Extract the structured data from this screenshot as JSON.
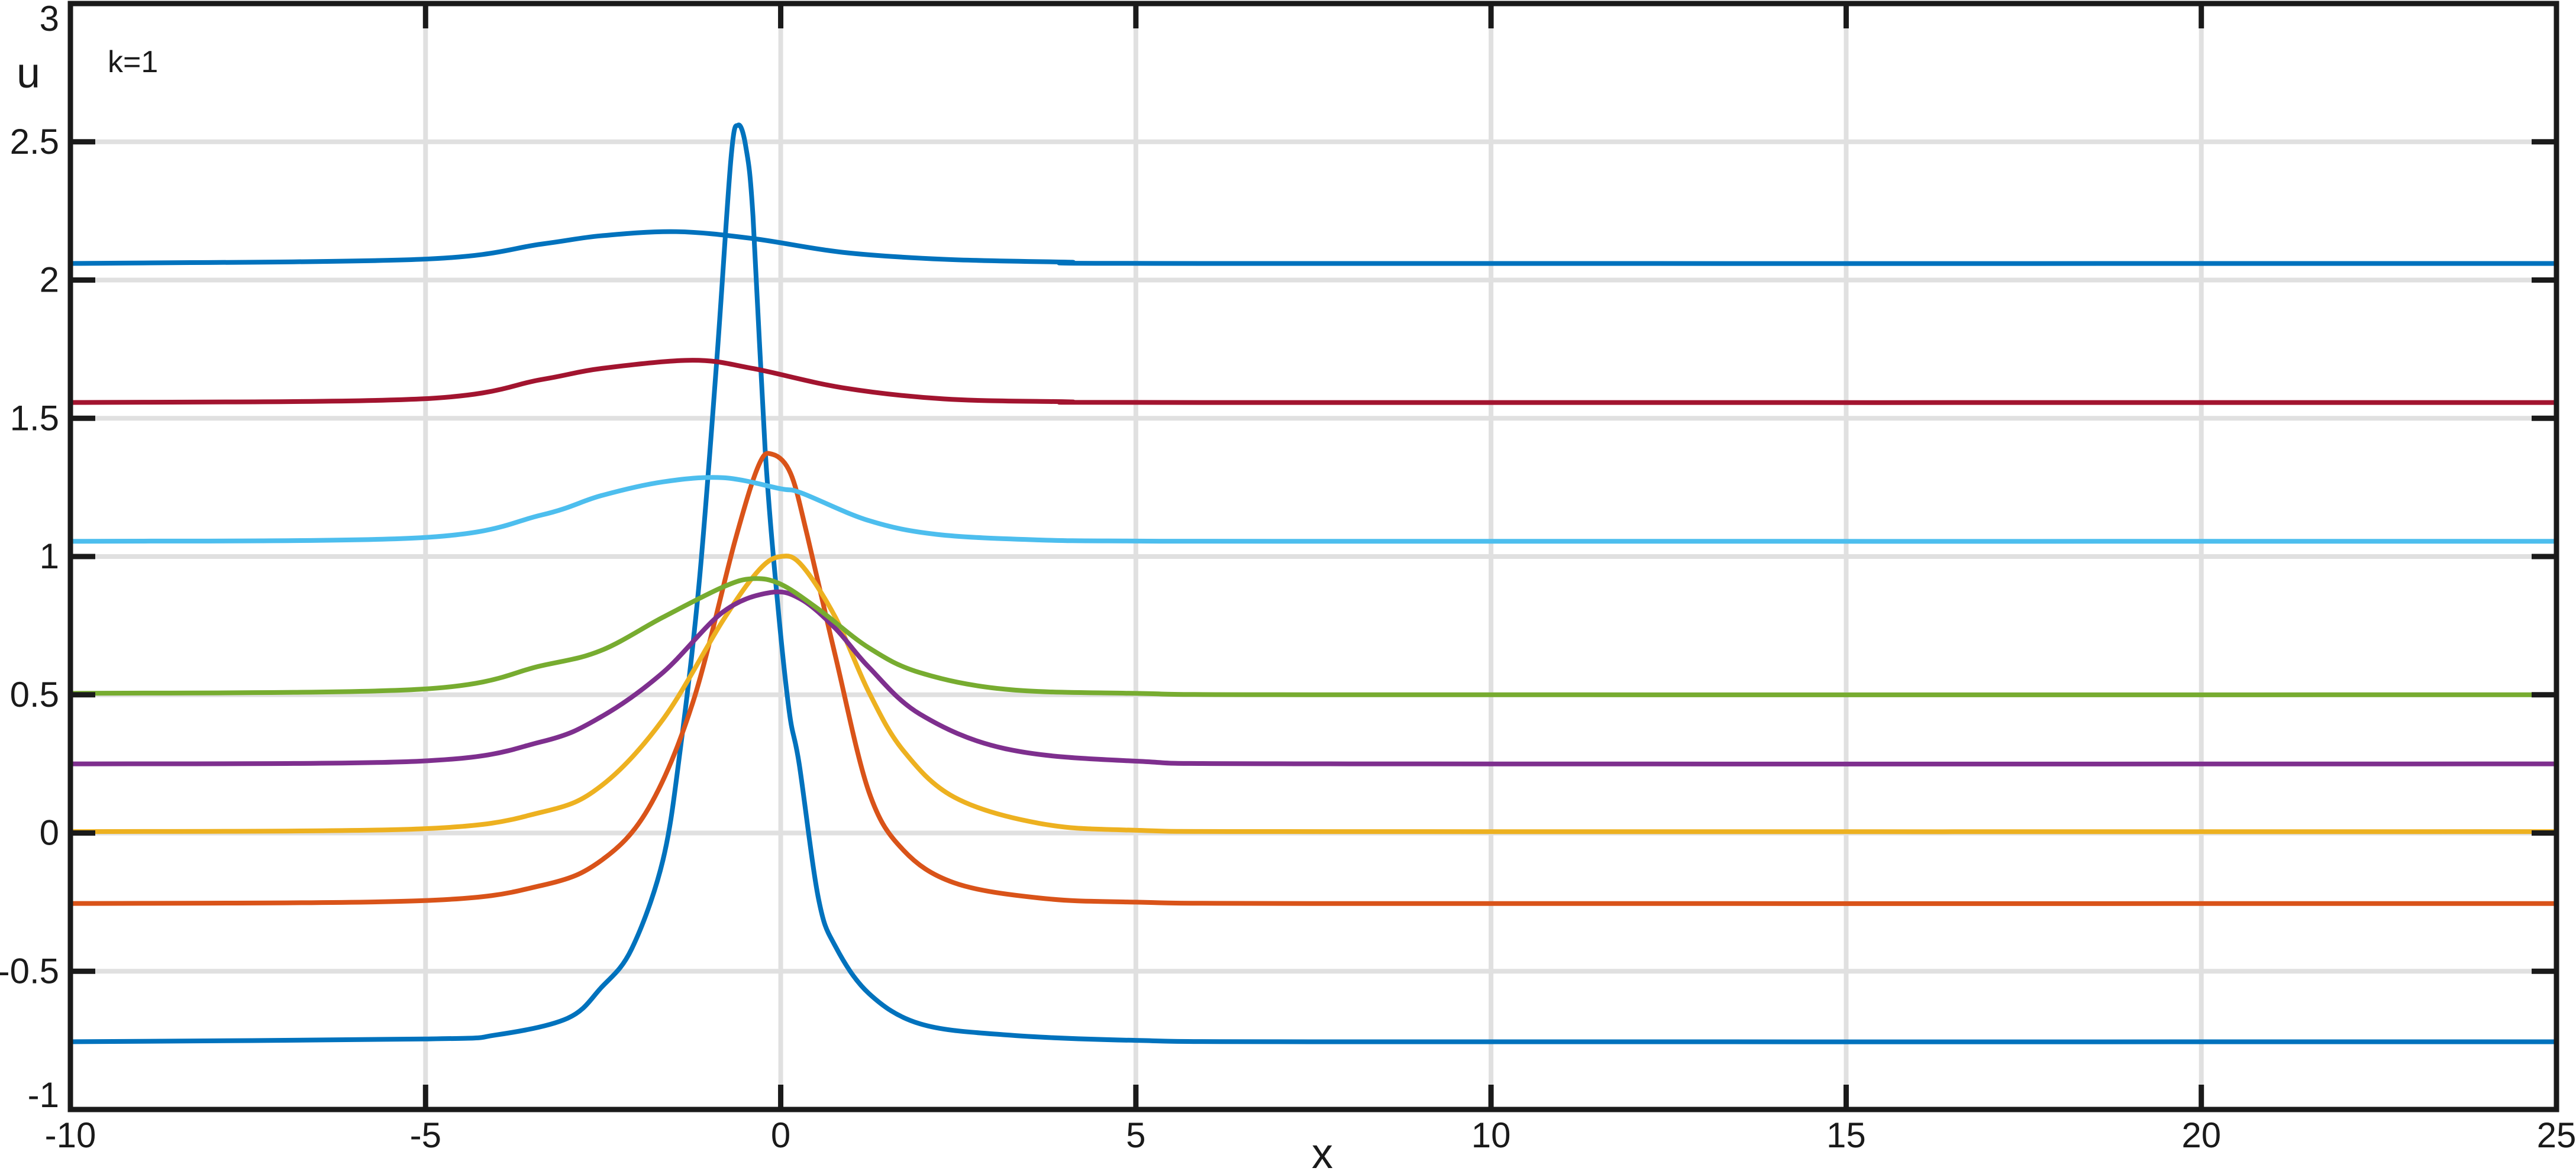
{
  "chart_data": {
    "type": "line",
    "title": "",
    "xlabel": "x",
    "ylabel": "u",
    "annotation": "k=1",
    "xlim": [
      -10,
      25
    ],
    "ylim": [
      -1,
      3
    ],
    "xticks": [
      -10,
      -5,
      0,
      5,
      10,
      15,
      20,
      25
    ],
    "xtick_labels": [
      "-10",
      "-5",
      "0",
      "5",
      "10",
      "15",
      "20",
      "25"
    ],
    "yticks": [
      -1,
      -0.5,
      0,
      0.5,
      1,
      1.5,
      2,
      2.5,
      3
    ],
    "ytick_labels": [
      "-1",
      "-0.5",
      "0",
      "0.5",
      "1",
      "1.5",
      "2",
      "2.5",
      "3"
    ],
    "grid": true,
    "grid_color": "#e0e0e0",
    "series": [
      {
        "color": "#0072BD",
        "x": [
          -10,
          -5,
          -4,
          -3,
          -2.53,
          -2.1,
          -1.66,
          -1.41,
          -1.15,
          -0.9,
          -0.7,
          -0.6,
          -0.49,
          -0.39,
          -0.22,
          -0.05,
          0.12,
          0.26,
          0.53,
          0.77,
          1.24,
          1.96,
          3.16,
          5,
          8,
          25
        ],
        "y": [
          -0.755,
          -0.745,
          -0.73,
          -0.67,
          -0.56,
          -0.42,
          -0.1,
          0.31,
          0.9,
          1.71,
          2.44,
          2.56,
          2.48,
          2.23,
          1.39,
          0.85,
          0.44,
          0.25,
          -0.235,
          -0.41,
          -0.58,
          -0.69,
          -0.73,
          -0.75,
          -0.755,
          -0.755
        ]
      },
      {
        "color": "#D95319",
        "x": [
          -10,
          -5.07,
          -3.37,
          -2.53,
          -1.86,
          -1.24,
          -0.64,
          -0.31,
          -0.12,
          0.14,
          0.38,
          0.77,
          1.24,
          1.72,
          2.44,
          3.64,
          5,
          8,
          25
        ],
        "y": [
          -0.255,
          -0.245,
          -0.19,
          -0.1,
          0.09,
          0.47,
          1.06,
          1.33,
          1.37,
          1.3,
          1.07,
          0.64,
          0.15,
          -0.06,
          -0.18,
          -0.235,
          -0.25,
          -0.255,
          -0.255
        ]
      },
      {
        "color": "#EDB120",
        "x": [
          -10,
          -5.07,
          -3.37,
          -2.53,
          -1.66,
          -0.81,
          -0.31,
          0,
          0.29,
          0.77,
          1.24,
          1.72,
          2.44,
          3.64,
          5,
          8,
          25
        ],
        "y": [
          0.005,
          0.015,
          0.075,
          0.17,
          0.41,
          0.77,
          0.95,
          1.0,
          0.97,
          0.78,
          0.51,
          0.3,
          0.13,
          0.035,
          0.01,
          0.005,
          0.005
        ]
      },
      {
        "color": "#7E2F8E",
        "x": [
          -10,
          -5.07,
          -3.37,
          -2.53,
          -1.66,
          -0.81,
          -0.14,
          0.29,
          0.77,
          1.24,
          1.96,
          3.16,
          5,
          8,
          25
        ],
        "y": [
          0.25,
          0.26,
          0.33,
          0.42,
          0.58,
          0.8,
          0.87,
          0.845,
          0.74,
          0.6,
          0.43,
          0.305,
          0.26,
          0.25,
          0.25
        ]
      },
      {
        "color": "#77AC30",
        "x": [
          -10,
          -5.07,
          -3.37,
          -2.53,
          -1.66,
          -0.81,
          -0.39,
          0,
          0.53,
          1.24,
          1.96,
          3.16,
          5,
          8,
          25
        ],
        "y": [
          0.505,
          0.52,
          0.605,
          0.66,
          0.78,
          0.89,
          0.92,
          0.9,
          0.81,
          0.67,
          0.58,
          0.52,
          0.505,
          0.5,
          0.5
        ]
      },
      {
        "color": "#4DBEEE",
        "x": [
          -10,
          -5.07,
          -3.37,
          -2.53,
          -1.66,
          -0.81,
          0,
          0.29,
          1.24,
          2.2,
          3.64,
          5,
          8,
          25
        ],
        "y": [
          1.055,
          1.068,
          1.15,
          1.22,
          1.27,
          1.285,
          1.245,
          1.23,
          1.13,
          1.08,
          1.06,
          1.056,
          1.055,
          1.055
        ]
      },
      {
        "color": "#A2142F",
        "x": [
          -10,
          -5.07,
          -3.37,
          -2.53,
          -1.24,
          -0.39,
          0.88,
          2.3,
          4,
          6,
          25
        ],
        "y": [
          1.557,
          1.57,
          1.64,
          1.68,
          1.71,
          1.68,
          1.61,
          1.57,
          1.56,
          1.557,
          1.557
        ]
      },
      {
        "color": "#0072BD",
        "x": [
          -10,
          -5.07,
          -3.37,
          -2.53,
          -1.47,
          -0.39,
          0.88,
          2.3,
          4,
          6,
          25
        ],
        "y": [
          2.06,
          2.075,
          2.13,
          2.16,
          2.175,
          2.15,
          2.1,
          2.075,
          2.065,
          2.06,
          2.06
        ]
      }
    ]
  }
}
